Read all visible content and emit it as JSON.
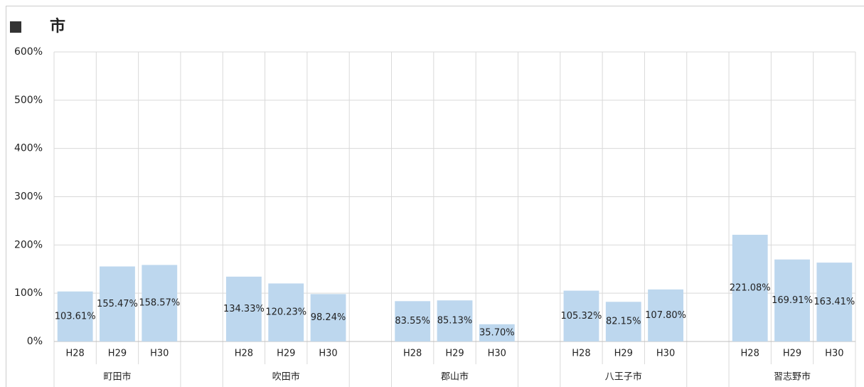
{
  "chart_data": {
    "type": "bar",
    "title": "市",
    "categories": [
      "H28",
      "H29",
      "H30",
      null,
      "H28",
      "H29",
      "H30",
      null,
      "H28",
      "H29",
      "H30",
      null,
      "H28",
      "H29",
      "H30",
      null,
      "H28",
      "H29",
      "H30"
    ],
    "groups": [
      "町田市",
      "吹田市",
      "郡山市",
      "八王子市",
      "習志野市"
    ],
    "values": [
      103.61,
      155.47,
      158.57,
      null,
      134.33,
      120.23,
      98.24,
      null,
      83.55,
      85.13,
      35.7,
      null,
      105.32,
      82.15,
      107.8,
      null,
      221.08,
      169.91,
      163.41
    ],
    "value_labels": [
      "103.61%",
      "155.47%",
      "158.57%",
      null,
      "134.33%",
      "120.23%",
      "98.24%",
      null,
      "83.55%",
      "85.13%",
      "35.70%",
      null,
      "105.32%",
      "82.15%",
      "107.80%",
      null,
      "221.08%",
      "169.91%",
      "163.41%"
    ],
    "color": "#bdd7ee",
    "ylim": [
      0,
      600
    ],
    "yticks": [
      {
        "value": 0,
        "label": "0%"
      },
      {
        "value": 100,
        "label": "100%"
      },
      {
        "value": 200,
        "label": "200%"
      },
      {
        "value": 300,
        "label": "300%"
      },
      {
        "value": 400,
        "label": "400%"
      },
      {
        "value": 500,
        "label": "500%"
      },
      {
        "value": 600,
        "label": "600%"
      }
    ],
    "grid": true
  }
}
